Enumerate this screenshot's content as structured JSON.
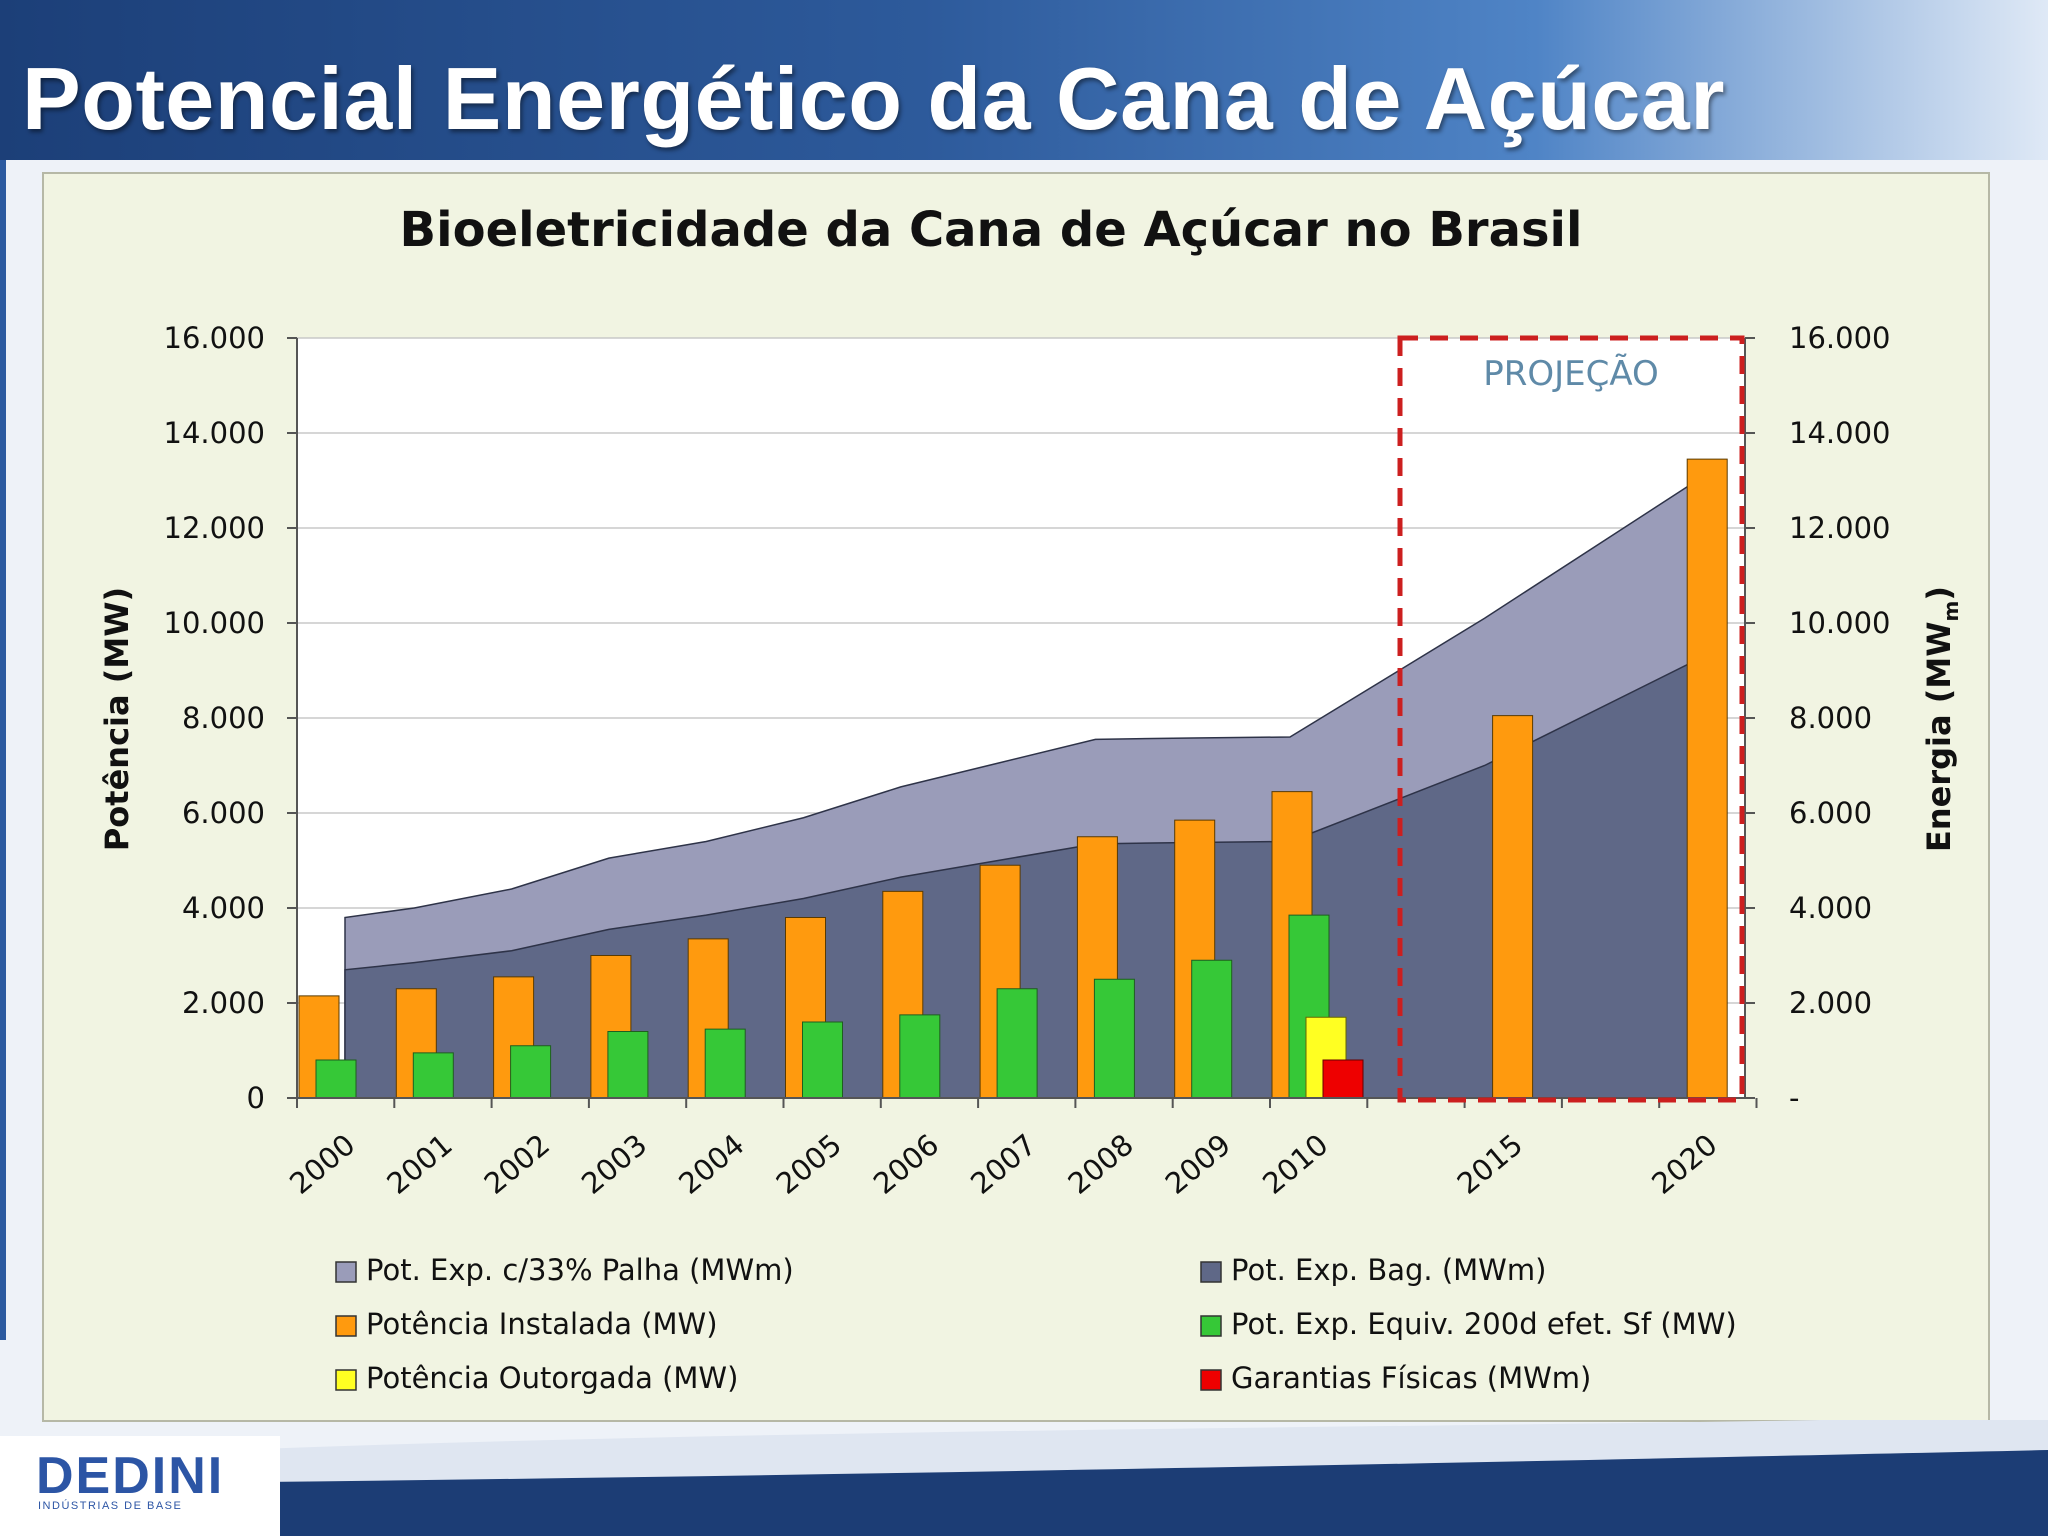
{
  "slide": {
    "title": "Potencial Energético da Cana de Açúcar",
    "logo": {
      "name": "DEDINI",
      "tagline": "INDÚSTRIAS DE BASE"
    }
  },
  "chart_data": {
    "type": "bar",
    "title": "Bioeletricidade da Cana de Açúcar no Brasil",
    "ylabel": "Potência (MW)",
    "ylabel_right": "Energia (MWm)",
    "ylim": [
      0,
      16000
    ],
    "yticks": [
      "0",
      "2.000",
      "4.000",
      "6.000",
      "8.000",
      "10.000",
      "12.000",
      "14.000",
      "16.000"
    ],
    "yticks_right": [
      "-",
      "2.000",
      "4.000",
      "6.000",
      "8.000",
      "10.000",
      "12.000",
      "14.000",
      "16.000"
    ],
    "categories": [
      "2000",
      "2001",
      "2002",
      "2003",
      "2004",
      "2005",
      "2006",
      "2007",
      "2008",
      "2009",
      "2010",
      "2015",
      "2020"
    ],
    "projection_label": "PROJEÇÃO",
    "projection_categories": [
      "2015",
      "2020"
    ],
    "grid": true,
    "legend_position": "bottom",
    "series": [
      {
        "name": "Pot. Exp. c/33% Palha (MWm)",
        "kind": "area",
        "color": "#9a9cb9",
        "values": [
          3800,
          4000,
          4400,
          5050,
          5400,
          5900,
          6550,
          7050,
          7550,
          7580,
          7600,
          10100,
          13100
        ]
      },
      {
        "name": "Pot. Exp. Bag. (MWm)",
        "kind": "area",
        "color": "#5f6887",
        "values": [
          2700,
          2850,
          3100,
          3550,
          3850,
          4200,
          4650,
          5000,
          5350,
          5380,
          5400,
          7000,
          9300
        ]
      },
      {
        "name": "Potência Instalada (MW)",
        "kind": "bar",
        "color": "#ff9a0e",
        "values": [
          2150,
          2300,
          2550,
          3000,
          3350,
          3800,
          4350,
          4900,
          5500,
          5850,
          6450,
          8050,
          13450
        ]
      },
      {
        "name": "Pot. Exp. Equiv. 200d efet. Sf (MW)",
        "kind": "bar",
        "color": "#36c837",
        "values": [
          800,
          950,
          1100,
          1400,
          1450,
          1600,
          1750,
          2300,
          2500,
          2900,
          3850,
          null,
          null
        ]
      },
      {
        "name": "Potência Outorgada (MW)",
        "kind": "bar",
        "color": "#ffff22",
        "values": [
          null,
          null,
          null,
          null,
          null,
          null,
          null,
          null,
          null,
          null,
          1700,
          null,
          null
        ]
      },
      {
        "name": "Garantias Físicas (MWm)",
        "kind": "bar",
        "color": "#ee0000",
        "values": [
          null,
          null,
          null,
          null,
          null,
          null,
          null,
          null,
          null,
          null,
          800,
          null,
          null
        ]
      }
    ]
  }
}
